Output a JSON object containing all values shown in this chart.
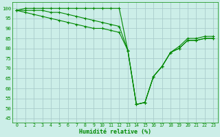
{
  "xlabel": "Humidité relative (%)",
  "background_color": "#cceee8",
  "grid_color": "#aacccc",
  "line_color": "#008800",
  "marker_color": "#008800",
  "xlim": [
    -0.5,
    23.5
  ],
  "ylim": [
    43,
    103
  ],
  "yticks": [
    45,
    50,
    55,
    60,
    65,
    70,
    75,
    80,
    85,
    90,
    95,
    100
  ],
  "xticks": [
    0,
    1,
    2,
    3,
    4,
    5,
    6,
    7,
    8,
    9,
    10,
    11,
    12,
    13,
    14,
    15,
    16,
    17,
    18,
    19,
    20,
    21,
    22,
    23
  ],
  "series": [
    [
      99,
      100,
      100,
      100,
      100,
      100,
      100,
      100,
      100,
      100,
      100,
      100,
      100,
      79,
      52,
      53,
      66,
      71,
      78,
      81,
      85,
      85,
      86,
      86
    ],
    [
      99,
      99,
      99,
      99,
      98,
      98,
      97,
      96,
      95,
      94,
      93,
      92,
      91,
      79,
      52,
      53,
      66,
      71,
      78,
      80,
      84,
      84,
      85,
      85
    ],
    [
      99,
      98,
      97,
      96,
      95,
      94,
      93,
      92,
      91,
      90,
      90,
      89,
      88,
      79,
      52,
      53,
      66,
      71,
      78,
      80,
      84,
      84,
      85,
      85
    ]
  ]
}
